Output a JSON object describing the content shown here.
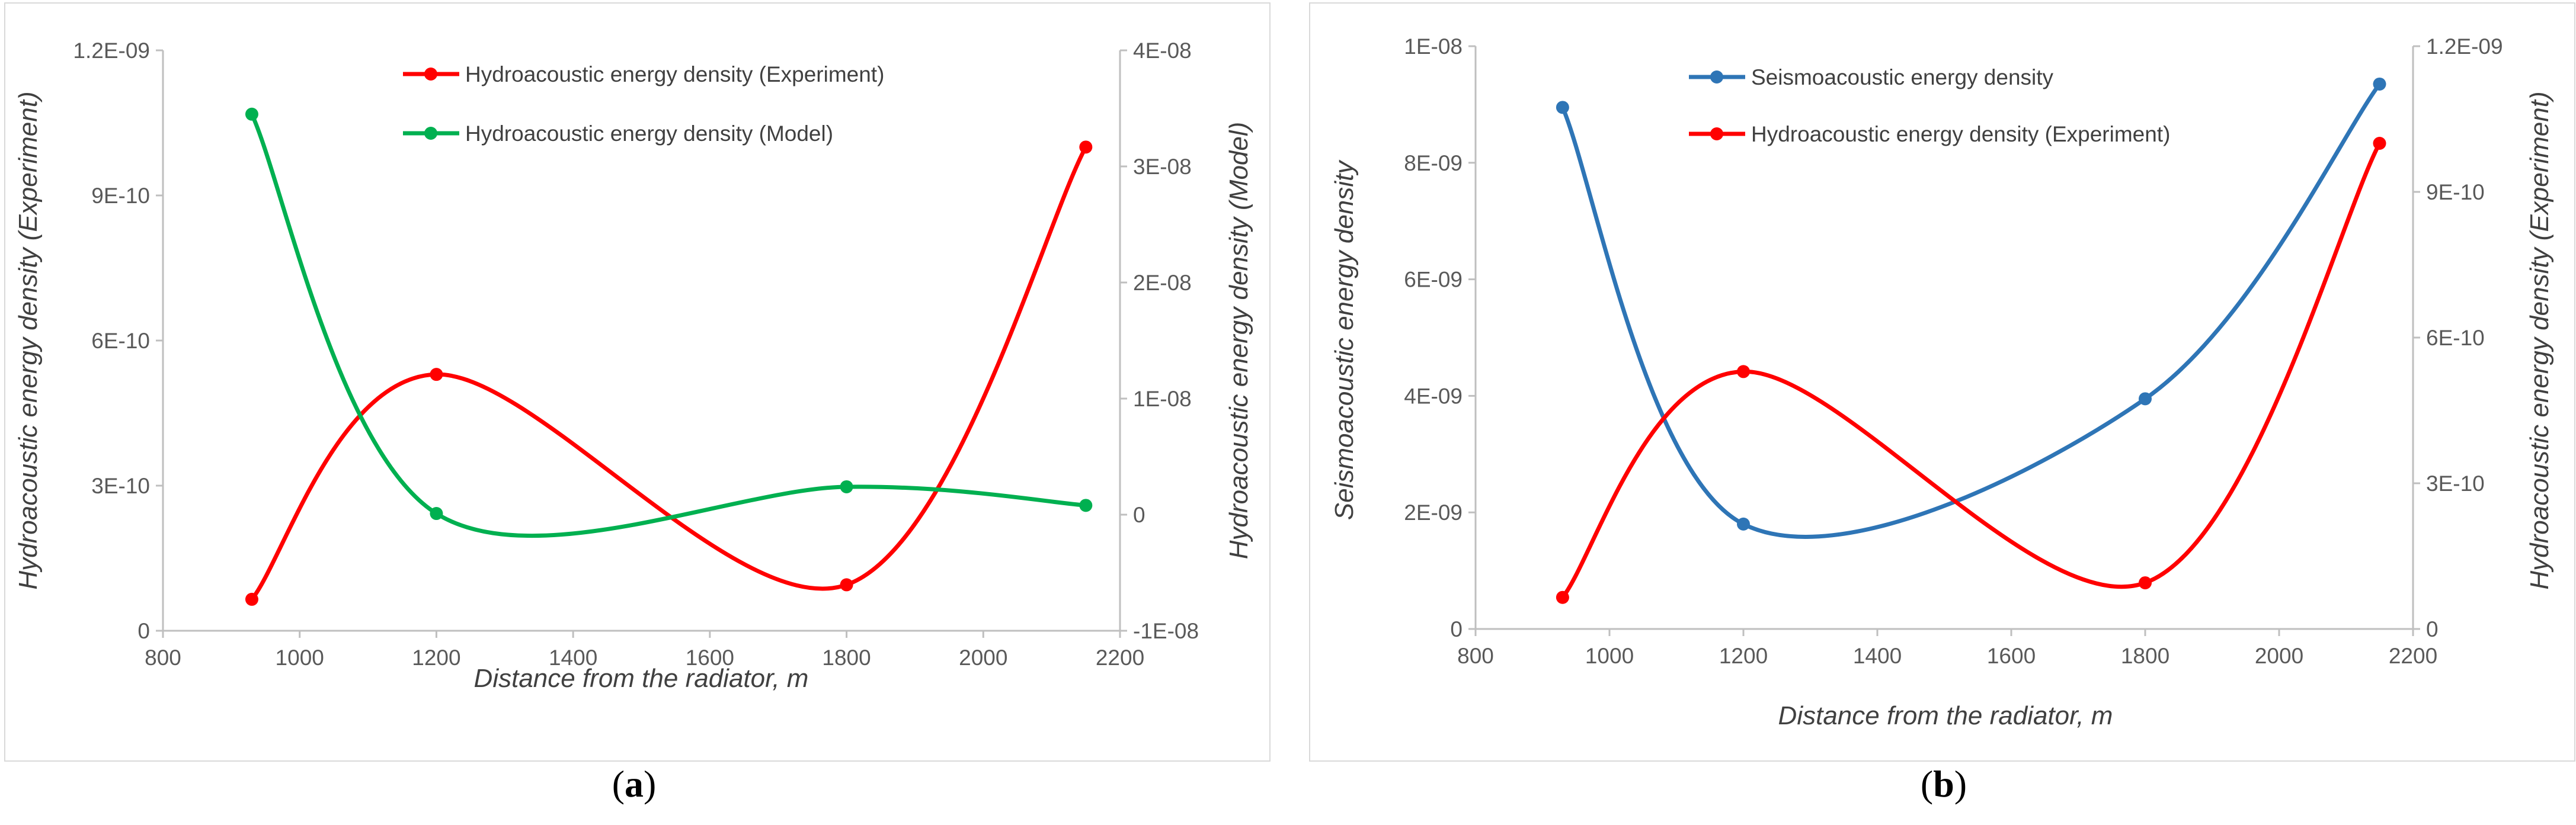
{
  "chart_data": [
    {
      "id": "a",
      "type": "line",
      "caption": "a",
      "xlabel": "Distance from the radiator, m",
      "ylabel_left": "Hydroacoustic energy density (Experiment)",
      "ylabel_right": "Hydroacoustic energy density (Model)",
      "xlim": [
        800,
        2200
      ],
      "xticks": [
        800,
        1000,
        1200,
        1400,
        1600,
        1800,
        2000,
        2200
      ],
      "xtick_labels": [
        "800",
        "1000",
        "1200",
        "1400",
        "1600",
        "1800",
        "2000",
        "2200"
      ],
      "ylim_left": [
        0,
        1.2e-09
      ],
      "yticks_left": [
        0,
        3e-10,
        6e-10,
        9e-10,
        1.2e-09
      ],
      "ytick_labels_left": [
        "0",
        "3E-10",
        "6E-10",
        "9E-10",
        "1.2E-09"
      ],
      "ylim_right": [
        -1e-08,
        4e-08
      ],
      "yticks_right": [
        -1e-08,
        0,
        1e-08,
        2e-08,
        3e-08,
        4e-08
      ],
      "ytick_labels_right": [
        "-1E-08",
        "0",
        "1E-08",
        "2E-08",
        "3E-08",
        "4E-08"
      ],
      "series": [
        {
          "name": "Hydroacoustic energy density (Experiment)",
          "axis": "left",
          "color": "#ff0000",
          "x": [
            930,
            1200,
            1800,
            2150
          ],
          "values": [
            6.5e-11,
            5.3e-10,
            9.5e-11,
            1e-09
          ]
        },
        {
          "name": "Hydroacoustic energy density (Model)",
          "axis": "right",
          "color": "#00b050",
          "x": [
            930,
            1200,
            1800,
            2150
          ],
          "values": [
            3.45e-08,
            1e-10,
            2.4e-09,
            8e-10
          ]
        }
      ]
    },
    {
      "id": "b",
      "type": "line",
      "caption": "b",
      "xlabel": "Distance from the radiator, m",
      "ylabel_left": "Seismoacoustic energy density",
      "ylabel_right": "Hydroacoustic energy density (Experiment)",
      "xlim": [
        800,
        2200
      ],
      "xticks": [
        800,
        1000,
        1200,
        1400,
        1600,
        1800,
        2000,
        2200
      ],
      "xtick_labels": [
        "800",
        "1000",
        "1200",
        "1400",
        "1600",
        "1800",
        "2000",
        "2200"
      ],
      "ylim_left": [
        0,
        1e-08
      ],
      "yticks_left": [
        0,
        2e-09,
        4e-09,
        6e-09,
        8e-09,
        1e-08
      ],
      "ytick_labels_left": [
        "0",
        "2E-09",
        "4E-09",
        "6E-09",
        "8E-09",
        "1E-08"
      ],
      "ylim_right": [
        0,
        1.2e-09
      ],
      "yticks_right": [
        0,
        3e-10,
        6e-10,
        9e-10,
        1.2e-09
      ],
      "ytick_labels_right": [
        "0",
        "3E-10",
        "6E-10",
        "9E-10",
        "1.2E-09"
      ],
      "series": [
        {
          "name": "Seismoacoustic energy density",
          "axis": "left",
          "color": "#2e75b6",
          "x": [
            930,
            1200,
            1800,
            2150
          ],
          "values": [
            8.95e-09,
            1.8e-09,
            3.95e-09,
            9.35e-09
          ]
        },
        {
          "name": "Hydroacoustic energy density (Experiment)",
          "axis": "right",
          "color": "#ff0000",
          "x": [
            930,
            1200,
            1800,
            2150
          ],
          "values": [
            6.5e-11,
            5.3e-10,
            9.5e-11,
            1e-09
          ]
        }
      ]
    }
  ]
}
